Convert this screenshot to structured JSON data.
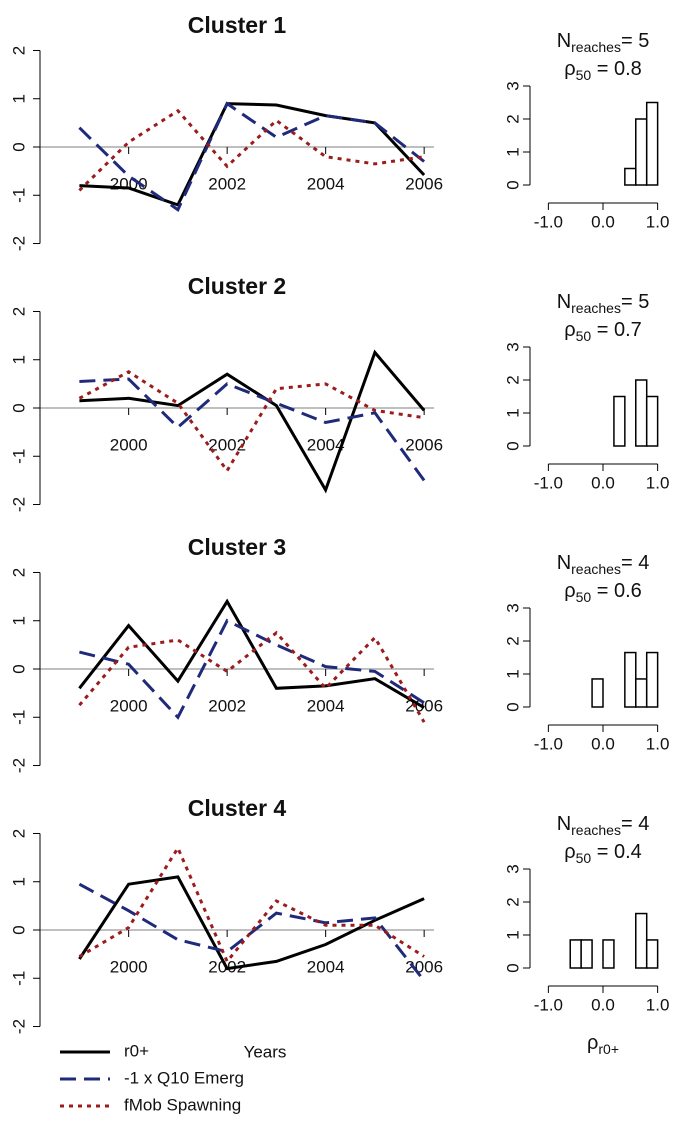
{
  "chart_data": [
    {
      "type": "line",
      "title": "Cluster 1",
      "x": [
        1999,
        2000,
        2001,
        2002,
        2003,
        2004,
        2005,
        2006
      ],
      "xlim": [
        1998.2,
        2006.2
      ],
      "xticks": [
        2000,
        2002,
        2004,
        2006
      ],
      "ylim": [
        -2.3,
        2.3
      ],
      "yticks": [
        -2,
        -1,
        0,
        1,
        2
      ],
      "series": [
        {
          "color": "#000000",
          "values": [
            -0.8,
            -0.85,
            -1.2,
            0.9,
            0.87,
            0.65,
            0.5,
            -0.58
          ]
        },
        {
          "color": "#1f2a7a",
          "values": [
            0.4,
            -0.6,
            -1.3,
            0.9,
            0.2,
            0.65,
            0.5,
            -0.3
          ]
        },
        {
          "color": "#9b1c1c",
          "values": [
            -0.9,
            0.1,
            0.75,
            -0.4,
            0.55,
            -0.2,
            -0.35,
            -0.2
          ]
        }
      ]
    },
    {
      "type": "histogram",
      "annotations": [
        {
          "text": "N",
          "sub": "reaches",
          "suffix": "= 5"
        },
        {
          "text": "ρ",
          "sub": "50",
          "suffix": " = 0.8"
        }
      ],
      "bins": [
        -1,
        -0.8,
        -0.6,
        -0.4,
        -0.2,
        0,
        0.2,
        0.4,
        0.6,
        0.8,
        1
      ],
      "counts": [
        0,
        0,
        0,
        0,
        0,
        0,
        0,
        0.5,
        2,
        2.5
      ],
      "xlim": [
        -1.08,
        1.08
      ],
      "xticks": [
        {
          "value": -1,
          "label": "-1.0"
        },
        {
          "value": 0,
          "label": "0.0"
        },
        {
          "value": 1,
          "label": "1.0"
        }
      ],
      "ylim": [
        0,
        3
      ],
      "yticks": [
        0,
        1,
        2,
        3
      ]
    },
    {
      "type": "line",
      "title": "Cluster 2",
      "x": [
        1999,
        2000,
        2001,
        2002,
        2003,
        2004,
        2005,
        2006
      ],
      "xlim": [
        1998.2,
        2006.2
      ],
      "xticks": [
        2000,
        2002,
        2004,
        2006
      ],
      "ylim": [
        -2.3,
        2.3
      ],
      "yticks": [
        -2,
        -1,
        0,
        1,
        2
      ],
      "series": [
        {
          "color": "#000000",
          "values": [
            0.15,
            0.2,
            0.05,
            0.7,
            0.05,
            -1.7,
            1.15,
            -0.05
          ]
        },
        {
          "color": "#1f2a7a",
          "values": [
            0.55,
            0.6,
            -0.4,
            0.5,
            0.1,
            -0.3,
            -0.1,
            -1.5
          ]
        },
        {
          "color": "#9b1c1c",
          "values": [
            0.2,
            0.75,
            0.1,
            -1.3,
            0.4,
            0.5,
            -0.05,
            -0.2
          ]
        }
      ]
    },
    {
      "type": "histogram",
      "annotations": [
        {
          "text": "N",
          "sub": "reaches",
          "suffix": "= 5"
        },
        {
          "text": "ρ",
          "sub": "50",
          "suffix": " = 0.7"
        }
      ],
      "bins": [
        -1,
        -0.8,
        -0.6,
        -0.4,
        -0.2,
        0,
        0.2,
        0.4,
        0.6,
        0.8,
        1
      ],
      "counts": [
        0,
        0,
        0,
        0,
        0,
        0,
        1.5,
        0,
        2,
        1.5
      ],
      "xlim": [
        -1.08,
        1.08
      ],
      "xticks": [
        {
          "value": -1,
          "label": "-1.0"
        },
        {
          "value": 0,
          "label": "0.0"
        },
        {
          "value": 1,
          "label": "1.0"
        }
      ],
      "ylim": [
        0,
        3
      ],
      "yticks": [
        0,
        1,
        2,
        3
      ]
    },
    {
      "type": "line",
      "title": "Cluster 3",
      "x": [
        1999,
        2000,
        2001,
        2002,
        2003,
        2004,
        2005,
        2006
      ],
      "xlim": [
        1998.2,
        2006.2
      ],
      "xticks": [
        2000,
        2002,
        2004,
        2006
      ],
      "ylim": [
        -2.3,
        2.3
      ],
      "yticks": [
        -2,
        -1,
        0,
        1,
        2
      ],
      "series": [
        {
          "color": "#000000",
          "values": [
            -0.4,
            0.9,
            -0.25,
            1.4,
            -0.4,
            -0.35,
            -0.2,
            -0.8
          ]
        },
        {
          "color": "#1f2a7a",
          "values": [
            0.35,
            0.1,
            -1.0,
            1.0,
            0.5,
            0.05,
            -0.05,
            -0.7
          ]
        },
        {
          "color": "#9b1c1c",
          "values": [
            -0.75,
            0.45,
            0.6,
            -0.05,
            0.75,
            -0.4,
            0.65,
            -1.1
          ]
        }
      ]
    },
    {
      "type": "histogram",
      "annotations": [
        {
          "text": "N",
          "sub": "reaches",
          "suffix": "= 4"
        },
        {
          "text": "ρ",
          "sub": "50",
          "suffix": " = 0.6"
        }
      ],
      "bins": [
        -1,
        -0.8,
        -0.6,
        -0.4,
        -0.2,
        0,
        0.2,
        0.4,
        0.6,
        0.8,
        1
      ],
      "counts": [
        0,
        0,
        0,
        0,
        0.85,
        0,
        0,
        1.65,
        0.85,
        1.65
      ],
      "xlim": [
        -1.08,
        1.08
      ],
      "xticks": [
        {
          "value": -1,
          "label": "-1.0"
        },
        {
          "value": 0,
          "label": "0.0"
        },
        {
          "value": 1,
          "label": "1.0"
        }
      ],
      "ylim": [
        0,
        3
      ],
      "yticks": [
        0,
        1,
        2,
        3
      ]
    },
    {
      "type": "line",
      "title": "Cluster 4",
      "xlabel": "Years",
      "x": [
        1999,
        2000,
        2001,
        2002,
        2003,
        2004,
        2005,
        2006
      ],
      "xlim": [
        1998.2,
        2006.2
      ],
      "xticks": [
        2000,
        2002,
        2004,
        2006
      ],
      "ylim": [
        -2.3,
        2.3
      ],
      "yticks": [
        -2,
        -1,
        0,
        1,
        2
      ],
      "series": [
        {
          "name": "r0+",
          "color": "#000000",
          "values": [
            -0.6,
            0.95,
            1.1,
            -0.8,
            -0.65,
            -0.3,
            0.2,
            0.65
          ]
        },
        {
          "name": "-1 x Q10 Emerg",
          "color": "#1f2a7a",
          "values": [
            0.95,
            0.4,
            -0.2,
            -0.45,
            0.35,
            0.15,
            0.25,
            -1.05
          ]
        },
        {
          "name": "fMob Spawning",
          "color": "#9b1c1c",
          "values": [
            -0.55,
            0.05,
            1.7,
            -0.65,
            0.6,
            0.1,
            0.1,
            -0.55
          ]
        }
      ]
    },
    {
      "type": "histogram",
      "annotations": [
        {
          "text": "N",
          "sub": "reaches",
          "suffix": "= 4"
        },
        {
          "text": "ρ",
          "sub": "50",
          "suffix": " = 0.4"
        }
      ],
      "xlabel": {
        "text": "ρ",
        "sub": "r0+"
      },
      "bins": [
        -1,
        -0.8,
        -0.6,
        -0.4,
        -0.2,
        0,
        0.2,
        0.4,
        0.6,
        0.8,
        1
      ],
      "counts": [
        0,
        0,
        0.85,
        0.85,
        0,
        0.85,
        0,
        0,
        1.65,
        0.85
      ],
      "xlim": [
        -1.08,
        1.08
      ],
      "xticks": [
        {
          "value": -1,
          "label": "-1.0"
        },
        {
          "value": 0,
          "label": "0.0"
        },
        {
          "value": 1,
          "label": "1.0"
        }
      ],
      "ylim": [
        0,
        3
      ],
      "yticks": [
        0,
        1,
        2,
        3
      ]
    }
  ]
}
